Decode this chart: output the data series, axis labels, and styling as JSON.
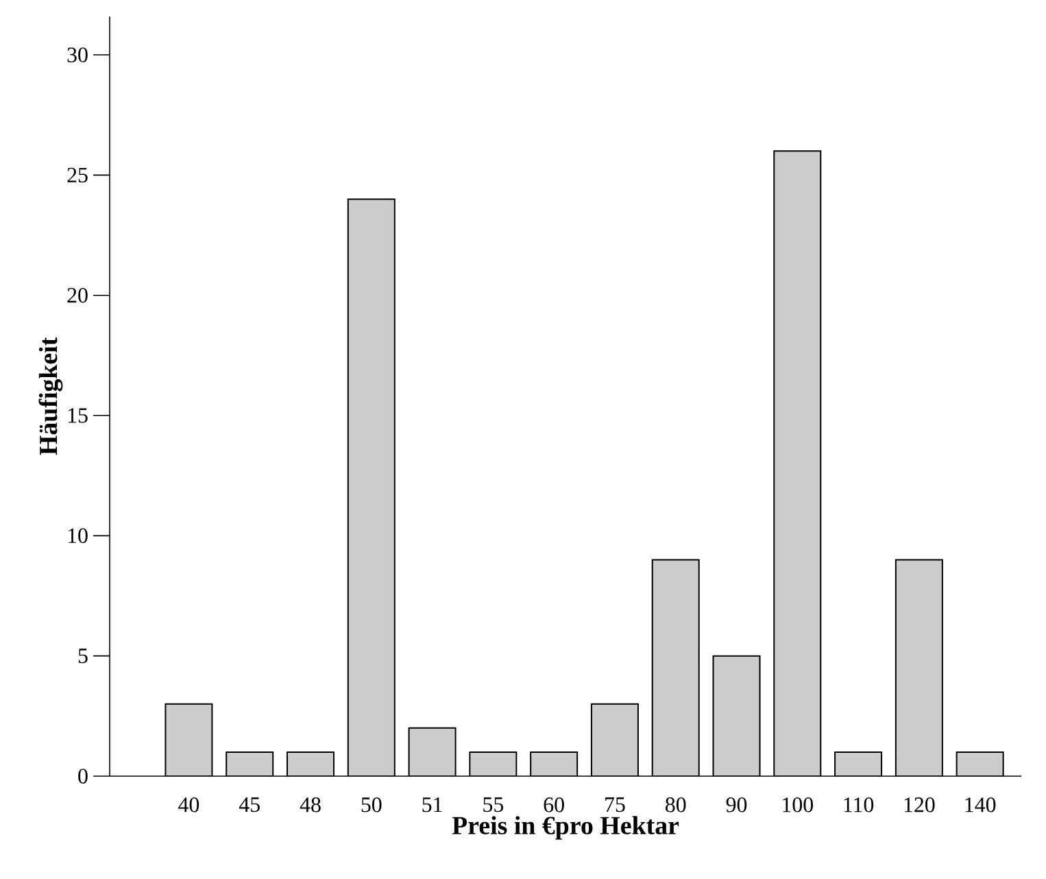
{
  "chart_data": {
    "type": "bar",
    "xlabel": "Preis in €pro Hektar",
    "ylabel": "Häufigkeit",
    "categories": [
      "40",
      "45",
      "48",
      "50",
      "51",
      "55",
      "60",
      "75",
      "80",
      "90",
      "100",
      "110",
      "120",
      "140"
    ],
    "values": [
      3,
      1,
      1,
      24,
      2,
      1,
      1,
      3,
      9,
      5,
      26,
      1,
      9,
      1
    ],
    "color": "#cccccc",
    "ylim": [
      0,
      31.6
    ],
    "yticks": [
      0,
      5,
      10,
      15,
      20,
      25,
      30
    ],
    "grid": false
  }
}
